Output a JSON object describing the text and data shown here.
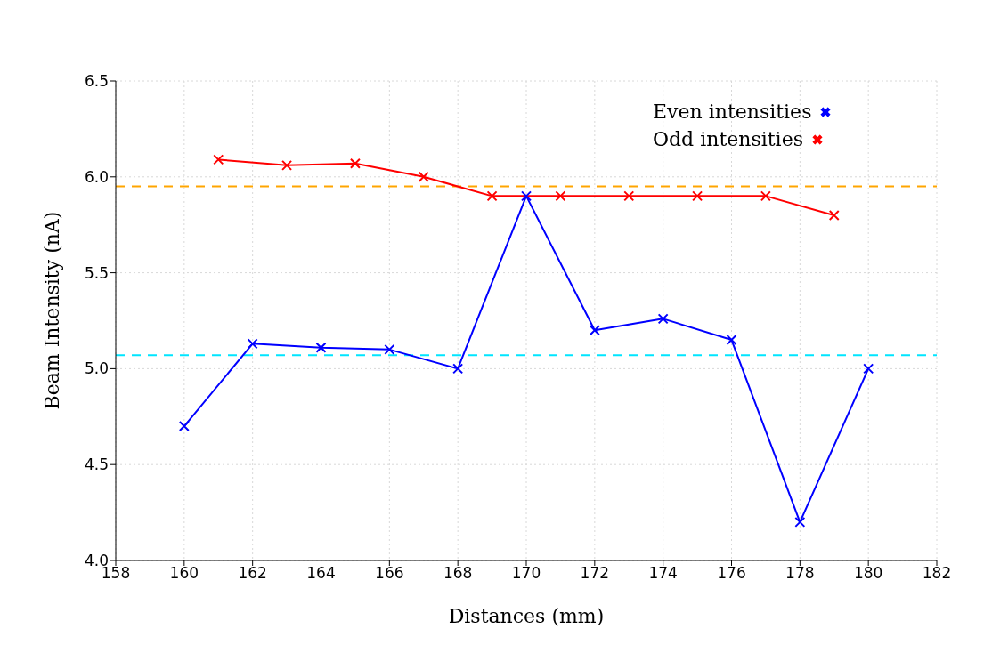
{
  "chart_data": {
    "type": "line",
    "xlabel": "Distances (mm)",
    "ylabel": "Beam Intensity (nA)",
    "series": [
      {
        "name": "Even intensities",
        "color": "#0000ff",
        "x": [
          160,
          162,
          164,
          166,
          168,
          170,
          172,
          174,
          176,
          178,
          180
        ],
        "values": [
          4.7,
          5.13,
          5.11,
          5.1,
          5.0,
          5.9,
          5.2,
          5.26,
          5.15,
          4.2,
          5.0
        ]
      },
      {
        "name": "Odd intensities",
        "color": "#ff0000",
        "x": [
          161,
          163,
          165,
          167,
          169,
          171,
          173,
          175,
          177,
          179
        ],
        "values": [
          6.09,
          6.06,
          6.07,
          6.0,
          5.9,
          5.9,
          5.9,
          5.9,
          5.9,
          5.8
        ]
      }
    ],
    "xlim": [
      158,
      182
    ],
    "xticks": [
      158,
      160,
      162,
      164,
      166,
      168,
      170,
      172,
      174,
      176,
      178,
      180,
      182
    ],
    "ylim": [
      4.0,
      6.5
    ],
    "yticks": [
      {
        "value": 4.0,
        "label": "4.0"
      },
      {
        "value": 4.5,
        "label": "4.5"
      },
      {
        "value": 5.0,
        "label": "5.0"
      },
      {
        "value": 5.5,
        "label": "5.5"
      },
      {
        "value": 6.0,
        "label": "6.0"
      },
      {
        "value": 6.5,
        "label": "6.5"
      }
    ],
    "ref_lines": [
      {
        "axis": "y",
        "value": 5.95,
        "color": "#ffa500",
        "line_style": "dashed"
      },
      {
        "axis": "y",
        "value": 5.07,
        "color": "#00e5ff",
        "line_style": "dashed"
      }
    ],
    "grid": true,
    "legend": "top right",
    "marker": "cross",
    "line_style": "solid"
  }
}
